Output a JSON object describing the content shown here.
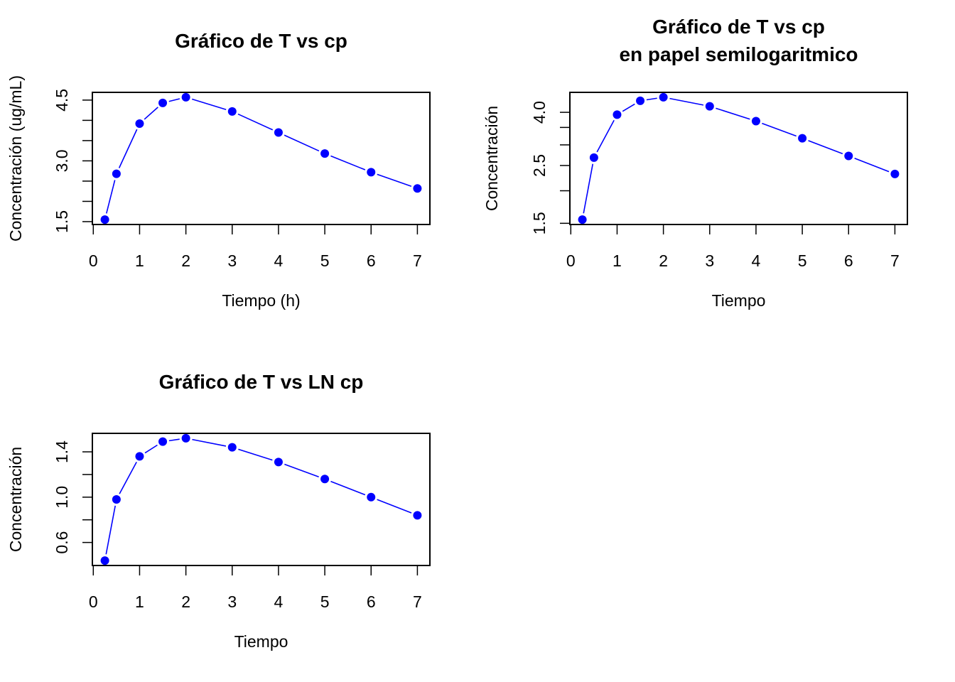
{
  "colors": {
    "series": "#0000ff",
    "axis": "#000000"
  },
  "chart_data": [
    {
      "type": "line",
      "title": [
        "Gráfico de T vs cp"
      ],
      "xlabel": "Tiempo (h)",
      "ylabel": "Concentración (ug/mL)",
      "x": [
        0.25,
        0.5,
        1,
        1.5,
        2,
        3,
        4,
        5,
        6,
        7
      ],
      "y": [
        1.55,
        2.68,
        3.92,
        4.43,
        4.57,
        4.22,
        3.7,
        3.18,
        2.72,
        2.32
      ],
      "xlim": [
        0,
        7
      ],
      "ylim": [
        1.5,
        4.5
      ],
      "yscale": "linear",
      "x_ticks": [
        0,
        1,
        2,
        3,
        4,
        5,
        6,
        7
      ],
      "y_ticks": [
        1.5,
        2.0,
        2.5,
        3.0,
        3.5,
        4.0,
        4.5
      ],
      "y_tick_labels": [
        "1.5",
        "",
        "",
        "3.0",
        "",
        "",
        "4.5"
      ],
      "markers": true,
      "grid": false
    },
    {
      "type": "line",
      "title": [
        "Gráfico de T vs cp",
        "en papel semilogaritmico"
      ],
      "xlabel": "Tiempo",
      "ylabel": "Concentración",
      "x": [
        0.25,
        0.5,
        1,
        1.5,
        2,
        3,
        4,
        5,
        6,
        7
      ],
      "y": [
        1.55,
        2.68,
        3.92,
        4.43,
        4.57,
        4.22,
        3.7,
        3.18,
        2.72,
        2.32
      ],
      "xlim": [
        0,
        7
      ],
      "ylim": [
        1.5,
        4.5
      ],
      "yscale": "log",
      "x_ticks": [
        0,
        1,
        2,
        3,
        4,
        5,
        6,
        7
      ],
      "y_ticks": [
        1.5,
        2.0,
        2.5,
        3.0,
        3.5,
        4.0
      ],
      "y_tick_labels": [
        "1.5",
        "",
        "2.5",
        "",
        "",
        "4.0"
      ],
      "markers": true,
      "grid": false
    },
    {
      "type": "line",
      "title": [
        "Gráfico de T vs LN cp"
      ],
      "xlabel": "Tiempo",
      "ylabel": "Concentración",
      "x": [
        0.25,
        0.5,
        1,
        1.5,
        2,
        3,
        4,
        5,
        6,
        7
      ],
      "y": [
        0.44,
        0.98,
        1.36,
        1.49,
        1.52,
        1.44,
        1.31,
        1.16,
        1.0,
        0.84
      ],
      "xlim": [
        0,
        7
      ],
      "ylim": [
        0.44,
        1.52
      ],
      "yscale": "linear",
      "x_ticks": [
        0,
        1,
        2,
        3,
        4,
        5,
        6,
        7
      ],
      "y_ticks": [
        0.6,
        0.8,
        1.0,
        1.2,
        1.4
      ],
      "y_tick_labels": [
        "0.6",
        "",
        "1.0",
        "",
        "1.4"
      ],
      "markers": true,
      "grid": false
    }
  ]
}
